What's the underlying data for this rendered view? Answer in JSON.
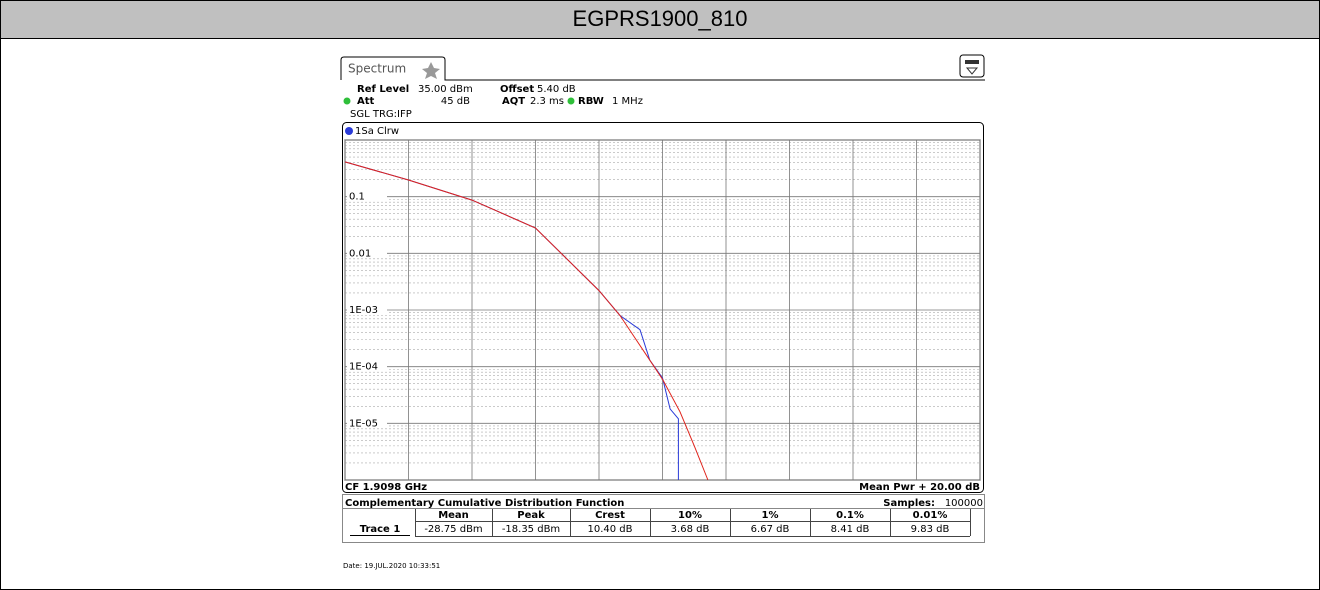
{
  "header": {
    "title": "EGPRS1900_810"
  },
  "tab": {
    "label": "Spectrum"
  },
  "settings": {
    "ref_level_label": "Ref Level",
    "ref_level": "35.00 dBm",
    "offset_label": "Offset",
    "offset": "5.40 dB",
    "att_label": "Att",
    "att": "45 dB",
    "aqt_label": "AQT",
    "aqt": "2.3 ms",
    "rbw_label": "RBW",
    "rbw": "1 MHz",
    "trigger": "SGL TRG:IFP"
  },
  "chart_data": {
    "type": "line",
    "trace_label": "1Sa Clrw",
    "x_start_label": "CF 1.9098 GHz",
    "x_end_label": "Mean Pwr + 20.00 dB",
    "log_y": true,
    "grid": true,
    "xlim": [
      0,
      20
    ],
    "xticks": [
      0,
      2,
      4,
      6,
      8,
      10,
      12,
      14,
      16,
      18,
      20
    ],
    "ylim": [
      1e-06,
      1
    ],
    "yticks": [
      1,
      0.1,
      0.01,
      {
        "value": 0.001,
        "label": "1E-03"
      },
      {
        "value": 0.0001,
        "label": "1E-04"
      },
      {
        "value": 1e-05,
        "label": "1E-05"
      },
      1e-06
    ],
    "series": [
      {
        "color": "#2a3bd8",
        "x": [
          0,
          2,
          4,
          6,
          8,
          8.66,
          9.29,
          9.6,
          10,
          10.24,
          10.5,
          10.5
        ],
        "values": [
          0.41,
          0.197,
          0.087,
          0.028,
          0.0022,
          0.0008,
          0.00045,
          0.00013,
          6.3e-05,
          1.8e-05,
          1.2e-05,
          1e-06
        ]
      },
      {
        "color": "#e0241c",
        "x": [
          0,
          2,
          4,
          6,
          8,
          8.66,
          9.6,
          10,
          10.55,
          11,
          11.43
        ],
        "values": [
          0.41,
          0.197,
          0.087,
          0.028,
          0.0022,
          0.0008,
          0.00013,
          6e-05,
          1.6e-05,
          4e-06,
          1e-06
        ]
      }
    ]
  },
  "table": {
    "title": "Complementary Cumulative Distribution Function",
    "samples_label": "Samples:",
    "samples": "100000",
    "columns": [
      "Mean",
      "Peak",
      "Crest",
      "10%",
      "1%",
      "0.1%",
      "0.01%"
    ],
    "rows": [
      [
        "Trace 1",
        "-28.75 dBm",
        "-18.35 dBm",
        "10.40 dB",
        "3.68 dB",
        "6.67 dB",
        "8.41 dB",
        "9.83 dB"
      ]
    ]
  },
  "footer": {
    "date": "Date: 19.JUL.2020 10:33:51"
  }
}
